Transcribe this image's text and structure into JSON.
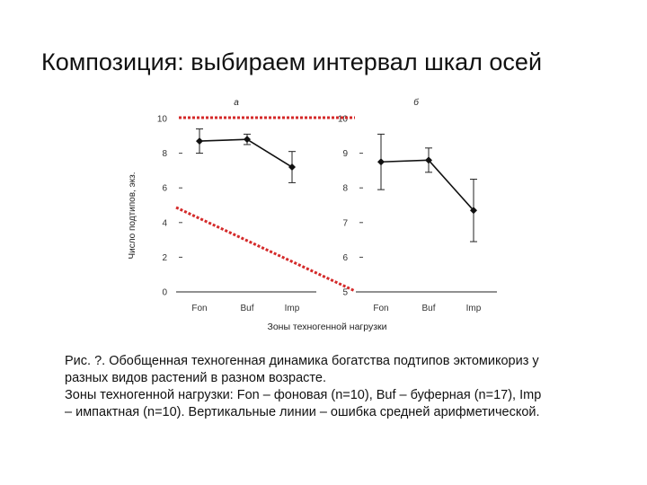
{
  "slide": {
    "title": "Композиция: выбираем интервал шкал осей"
  },
  "chart_data": [
    {
      "type": "line",
      "panel_label": "а",
      "categories": [
        "Fon",
        "Buf",
        "Imp"
      ],
      "values": [
        8.7,
        8.8,
        7.2
      ],
      "error": [
        0.7,
        0.3,
        0.9
      ],
      "ylim": [
        0,
        10
      ],
      "yticks": [
        0,
        2,
        4,
        6,
        8,
        10
      ],
      "ylabel": "Число подтипов, экз.",
      "xlabel": ""
    },
    {
      "type": "line",
      "panel_label": "б",
      "categories": [
        "Fon",
        "Buf",
        "Imp"
      ],
      "values": [
        8.75,
        8.8,
        7.35
      ],
      "error": [
        0.8,
        0.35,
        0.9
      ],
      "ylim": [
        5,
        10
      ],
      "yticks": [
        5,
        6,
        7,
        8,
        9,
        10
      ],
      "ylabel": "",
      "xlabel": ""
    }
  ],
  "shared_xlabel": "Зоны техногенной нагрузки",
  "annotation_color": "#d42a2a",
  "caption": {
    "line1": "Рис. ?. Обобщенная техногенная динамика богатства подтипов эктомикориз у",
    "line2": "разных видов растений в разном возрасте.",
    "line3": "Зоны техногенной нагрузки: Fon – фоновая (n=10), Buf – буферная (n=17), Imp",
    "line4": "– импактная (n=10). Вертикальные линии – ошибка средней арифметической."
  }
}
